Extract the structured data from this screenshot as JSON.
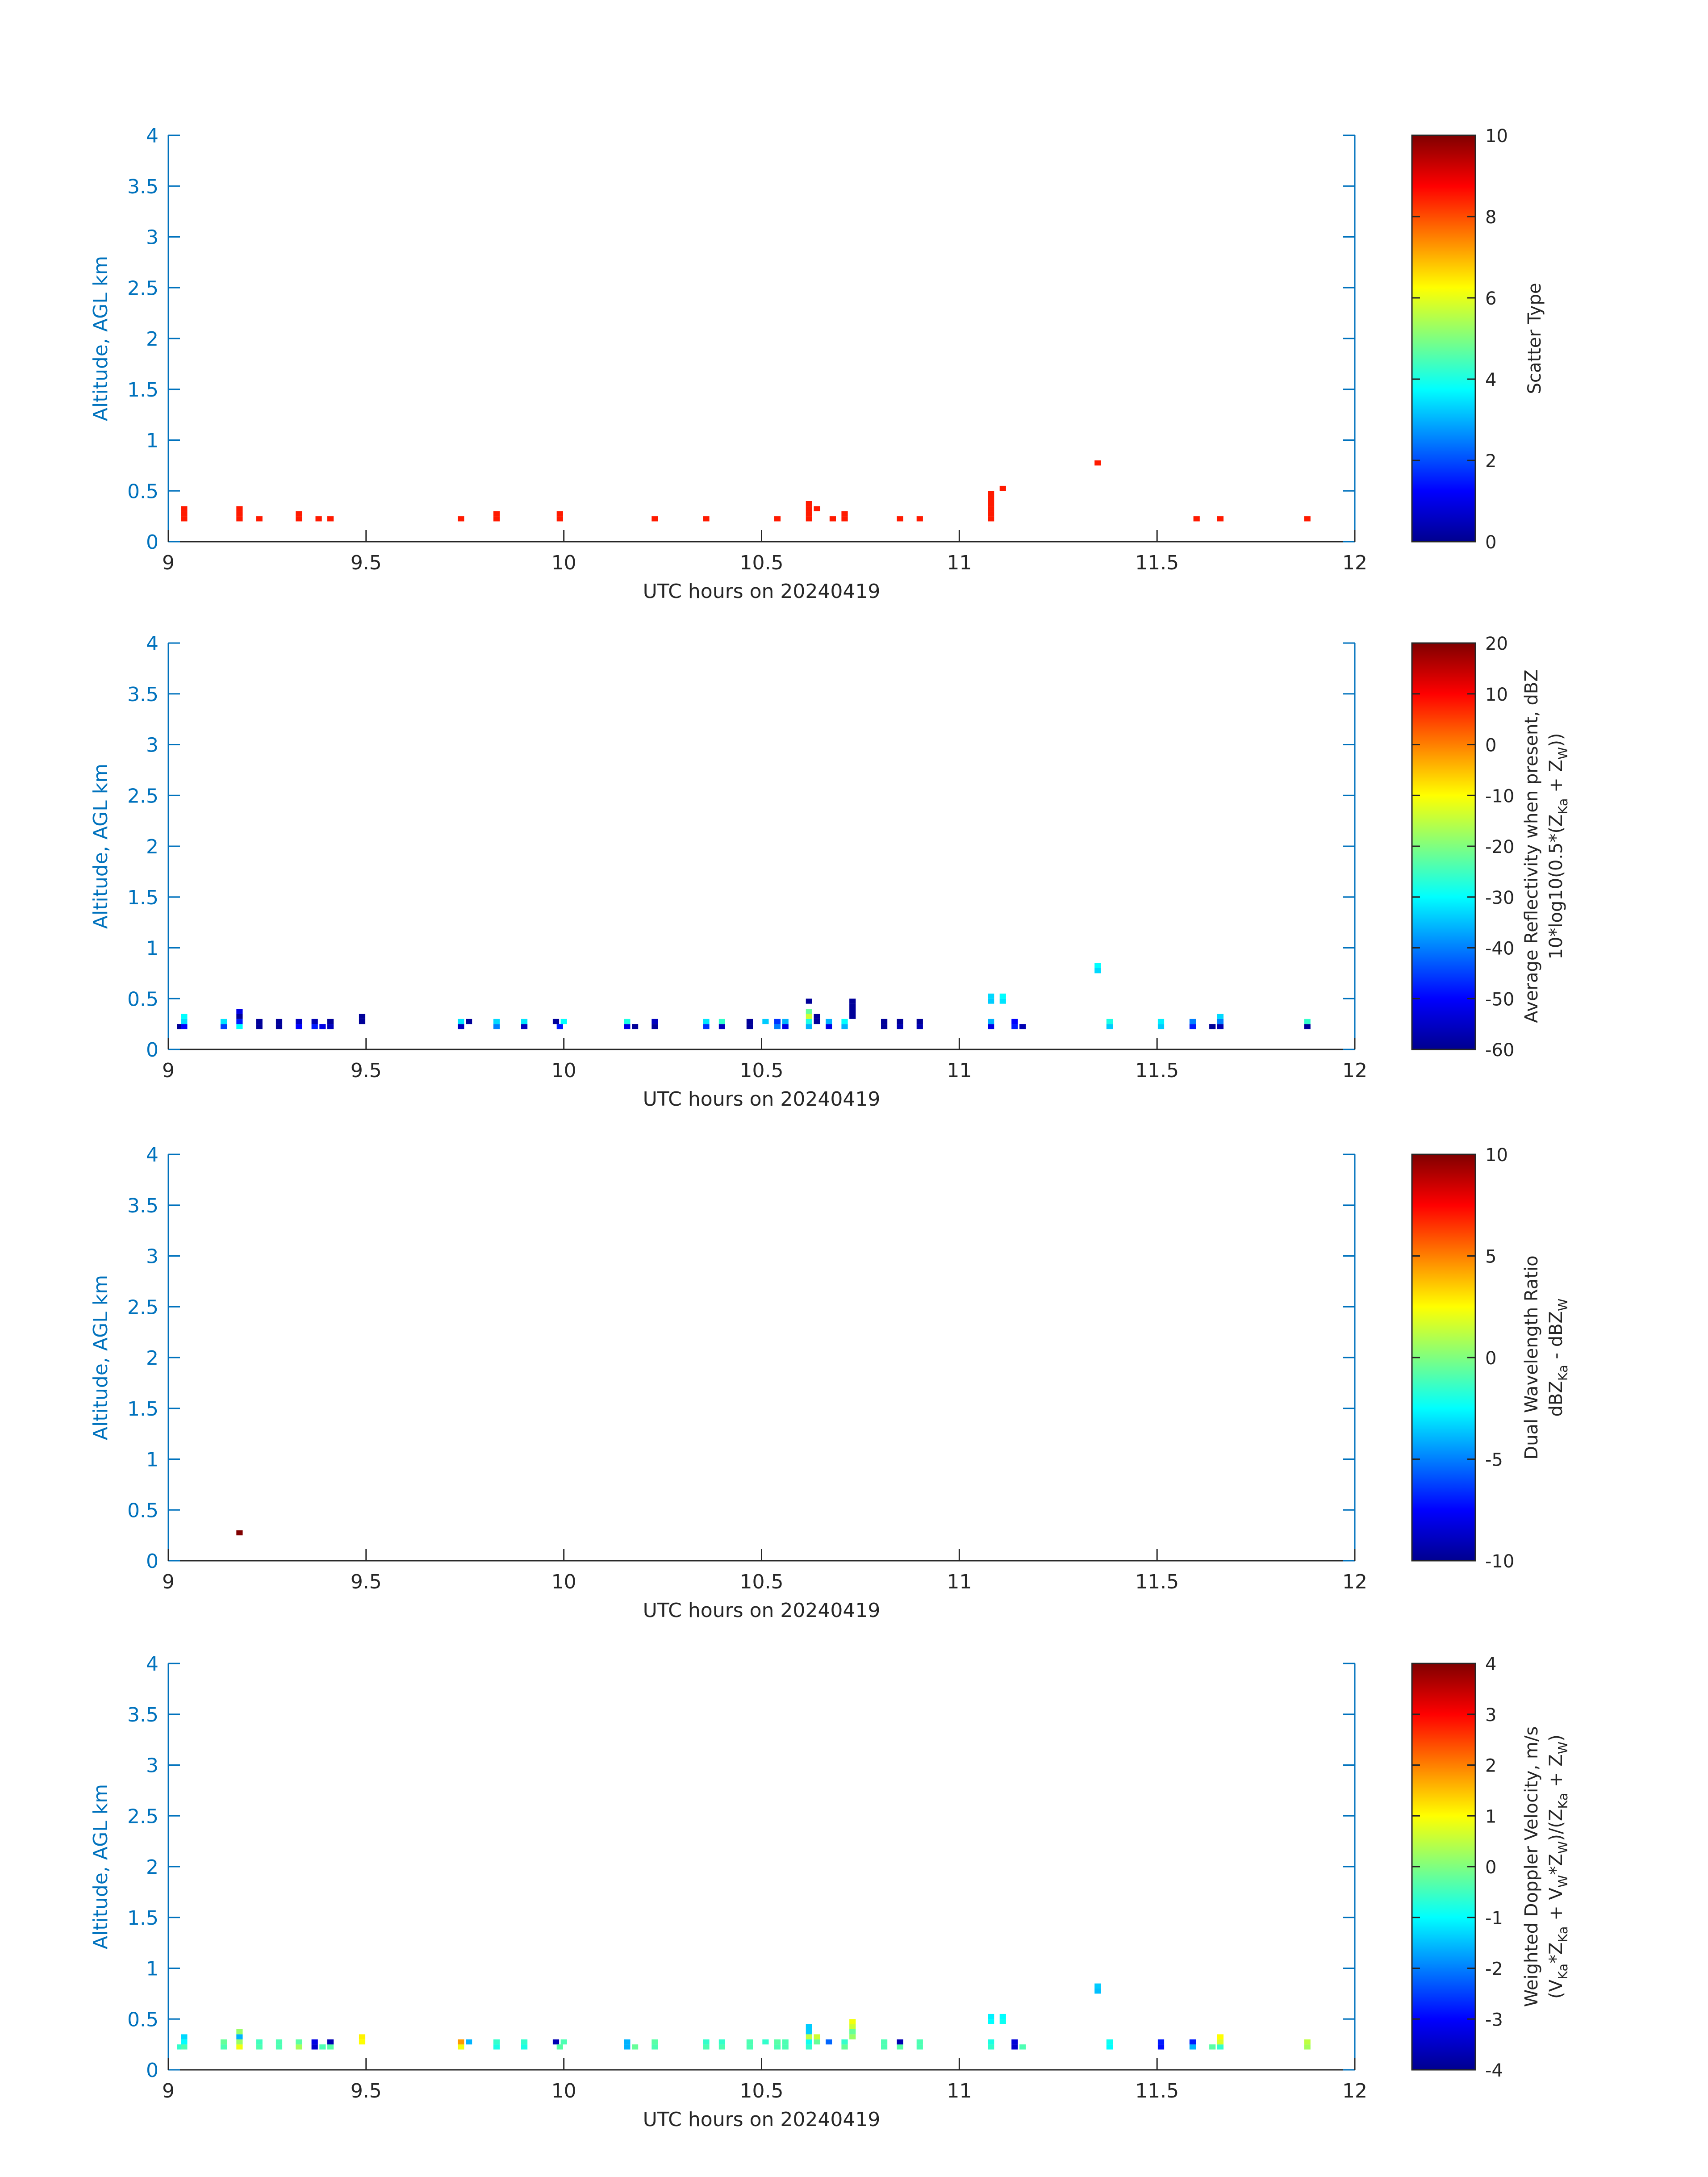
{
  "colors": {
    "axis": "#0072bd",
    "text": "#262626",
    "background": "#ffffff"
  },
  "chart_data": [
    {
      "type": "heatmap",
      "xlabel": "UTC hours on 20240419",
      "ylabel": "Altitude, AGL km",
      "xlim": [
        9,
        12
      ],
      "ylim": [
        0,
        4
      ],
      "xticks": [
        "9",
        "9.5",
        "10",
        "10.5",
        "11",
        "11.5",
        "12"
      ],
      "yticks": [
        "0",
        "0.5",
        "1",
        "1.5",
        "2",
        "2.5",
        "3",
        "3.5",
        "4"
      ],
      "colorbar": {
        "label": "Scatter Type",
        "label2": "",
        "range": [
          0,
          10
        ],
        "ticks": [
          "0",
          "2",
          "4",
          "6",
          "8",
          "10"
        ],
        "colormap": "jet"
      },
      "dx": 0.016,
      "dy": 0.05,
      "cells": [
        [
          9.04,
          0.2,
          8.5
        ],
        [
          9.04,
          0.25,
          8.5
        ],
        [
          9.04,
          0.3,
          8.5
        ],
        [
          9.18,
          0.2,
          8.5
        ],
        [
          9.18,
          0.25,
          8.5
        ],
        [
          9.18,
          0.3,
          8.5
        ],
        [
          9.23,
          0.2,
          8.5
        ],
        [
          9.33,
          0.2,
          8.5
        ],
        [
          9.33,
          0.25,
          8.5
        ],
        [
          9.38,
          0.2,
          8.5
        ],
        [
          9.41,
          0.2,
          8.5
        ],
        [
          9.74,
          0.2,
          8.5
        ],
        [
          9.83,
          0.2,
          8.5
        ],
        [
          9.83,
          0.25,
          8.5
        ],
        [
          9.99,
          0.2,
          8.5
        ],
        [
          9.99,
          0.25,
          8.5
        ],
        [
          10.23,
          0.2,
          8.5
        ],
        [
          10.36,
          0.2,
          8.5
        ],
        [
          10.54,
          0.2,
          8.5
        ],
        [
          10.62,
          0.2,
          8.5
        ],
        [
          10.62,
          0.25,
          8.5
        ],
        [
          10.62,
          0.3,
          8.5
        ],
        [
          10.62,
          0.35,
          8.5
        ],
        [
          10.64,
          0.3,
          8.5
        ],
        [
          10.68,
          0.2,
          8.5
        ],
        [
          10.71,
          0.2,
          8.5
        ],
        [
          10.71,
          0.25,
          8.5
        ],
        [
          10.85,
          0.2,
          8.5
        ],
        [
          10.9,
          0.2,
          8.5
        ],
        [
          11.08,
          0.2,
          8.5
        ],
        [
          11.08,
          0.25,
          8.5
        ],
        [
          11.08,
          0.3,
          8.5
        ],
        [
          11.08,
          0.35,
          8.5
        ],
        [
          11.08,
          0.4,
          8.5
        ],
        [
          11.08,
          0.45,
          8.5
        ],
        [
          11.11,
          0.5,
          8.5
        ],
        [
          11.35,
          0.75,
          8.5
        ],
        [
          11.6,
          0.2,
          8.5
        ],
        [
          11.66,
          0.2,
          8.5
        ],
        [
          11.88,
          0.2,
          8.5
        ]
      ]
    },
    {
      "type": "heatmap",
      "xlabel": "UTC hours on 20240419",
      "ylabel": "Altitude, AGL km",
      "xlim": [
        9,
        12
      ],
      "ylim": [
        0,
        4
      ],
      "xticks": [
        "9",
        "9.5",
        "10",
        "10.5",
        "11",
        "11.5",
        "12"
      ],
      "yticks": [
        "0",
        "0.5",
        "1",
        "1.5",
        "2",
        "2.5",
        "3",
        "3.5",
        "4"
      ],
      "colorbar": {
        "label": "Average Reflectivity when present, dBZ",
        "label2": "10*log10(0.5*(Z_Ka + Z_W))",
        "range": [
          -60,
          20
        ],
        "ticks": [
          "-60",
          "-50",
          "-40",
          "-30",
          "-20",
          "-10",
          "0",
          "10",
          "20"
        ],
        "colormap": "jet"
      },
      "dx": 0.016,
      "dy": 0.05,
      "cells": [
        [
          9.03,
          0.2,
          -58
        ],
        [
          9.04,
          0.2,
          -50
        ],
        [
          9.04,
          0.25,
          -33
        ],
        [
          9.04,
          0.3,
          -30
        ],
        [
          9.14,
          0.2,
          -45
        ],
        [
          9.14,
          0.25,
          -32
        ],
        [
          9.18,
          0.2,
          -30
        ],
        [
          9.18,
          0.25,
          -48
        ],
        [
          9.18,
          0.3,
          -58
        ],
        [
          9.18,
          0.35,
          -52
        ],
        [
          9.23,
          0.2,
          -58
        ],
        [
          9.23,
          0.25,
          -58
        ],
        [
          9.28,
          0.2,
          -58
        ],
        [
          9.28,
          0.25,
          -58
        ],
        [
          9.33,
          0.2,
          -50
        ],
        [
          9.33,
          0.25,
          -55
        ],
        [
          9.37,
          0.2,
          -48
        ],
        [
          9.37,
          0.25,
          -56
        ],
        [
          9.39,
          0.2,
          -52
        ],
        [
          9.41,
          0.2,
          -55
        ],
        [
          9.41,
          0.25,
          -58
        ],
        [
          9.49,
          0.25,
          -58
        ],
        [
          9.49,
          0.3,
          -58
        ],
        [
          9.74,
          0.2,
          -55
        ],
        [
          9.74,
          0.25,
          -32
        ],
        [
          9.76,
          0.25,
          -58
        ],
        [
          9.83,
          0.2,
          -40
        ],
        [
          9.83,
          0.25,
          -33
        ],
        [
          9.9,
          0.2,
          -55
        ],
        [
          9.9,
          0.25,
          -32
        ],
        [
          9.98,
          0.25,
          -58
        ],
        [
          9.99,
          0.2,
          -48
        ],
        [
          10.0,
          0.25,
          -30
        ],
        [
          10.16,
          0.2,
          -52
        ],
        [
          10.16,
          0.25,
          -28
        ],
        [
          10.18,
          0.2,
          -58
        ],
        [
          10.23,
          0.2,
          -58
        ],
        [
          10.23,
          0.25,
          -55
        ],
        [
          10.36,
          0.2,
          -46
        ],
        [
          10.36,
          0.25,
          -32
        ],
        [
          10.4,
          0.2,
          -55
        ],
        [
          10.4,
          0.25,
          -26
        ],
        [
          10.47,
          0.2,
          -58
        ],
        [
          10.47,
          0.25,
          -58
        ],
        [
          10.51,
          0.25,
          -34
        ],
        [
          10.54,
          0.2,
          -40
        ],
        [
          10.54,
          0.25,
          -46
        ],
        [
          10.56,
          0.2,
          -52
        ],
        [
          10.56,
          0.25,
          -36
        ],
        [
          10.62,
          0.2,
          -36
        ],
        [
          10.62,
          0.25,
          -28
        ],
        [
          10.62,
          0.3,
          -14
        ],
        [
          10.62,
          0.35,
          -22
        ],
        [
          10.62,
          0.45,
          -58
        ],
        [
          10.64,
          0.25,
          -58
        ],
        [
          10.64,
          0.3,
          -58
        ],
        [
          10.67,
          0.2,
          -52
        ],
        [
          10.67,
          0.25,
          -36
        ],
        [
          10.71,
          0.2,
          -36
        ],
        [
          10.71,
          0.25,
          -30
        ],
        [
          10.73,
          0.3,
          -58
        ],
        [
          10.73,
          0.35,
          -58
        ],
        [
          10.73,
          0.4,
          -58
        ],
        [
          10.73,
          0.45,
          -58
        ],
        [
          10.81,
          0.2,
          -58
        ],
        [
          10.81,
          0.25,
          -58
        ],
        [
          10.85,
          0.2,
          -56
        ],
        [
          10.85,
          0.25,
          -58
        ],
        [
          10.9,
          0.2,
          -56
        ],
        [
          10.9,
          0.25,
          -58
        ],
        [
          11.08,
          0.2,
          -52
        ],
        [
          11.08,
          0.25,
          -36
        ],
        [
          11.08,
          0.45,
          -34
        ],
        [
          11.08,
          0.5,
          -33
        ],
        [
          11.11,
          0.45,
          -32
        ],
        [
          11.11,
          0.5,
          -30
        ],
        [
          11.14,
          0.2,
          -48
        ],
        [
          11.14,
          0.25,
          -50
        ],
        [
          11.16,
          0.2,
          -56
        ],
        [
          11.35,
          0.75,
          -33
        ],
        [
          11.35,
          0.8,
          -30
        ],
        [
          11.38,
          0.2,
          -34
        ],
        [
          11.38,
          0.25,
          -28
        ],
        [
          11.51,
          0.2,
          -34
        ],
        [
          11.51,
          0.25,
          -31
        ],
        [
          11.59,
          0.2,
          -48
        ],
        [
          11.59,
          0.25,
          -40
        ],
        [
          11.64,
          0.2,
          -58
        ],
        [
          11.66,
          0.2,
          -56
        ],
        [
          11.66,
          0.25,
          -40
        ],
        [
          11.66,
          0.3,
          -33
        ],
        [
          11.88,
          0.2,
          -58
        ],
        [
          11.88,
          0.25,
          -26
        ]
      ]
    },
    {
      "type": "heatmap",
      "xlabel": "UTC hours on 20240419",
      "ylabel": "Altitude, AGL km",
      "xlim": [
        9,
        12
      ],
      "ylim": [
        0,
        4
      ],
      "xticks": [
        "9",
        "9.5",
        "10",
        "10.5",
        "11",
        "11.5",
        "12"
      ],
      "yticks": [
        "0",
        "0.5",
        "1",
        "1.5",
        "2",
        "2.5",
        "3",
        "3.5",
        "4"
      ],
      "colorbar": {
        "label": "Dual Wavelength Ratio",
        "label2": "dBZ_Ka - dBZ_W",
        "range": [
          -10,
          10
        ],
        "ticks": [
          "-10",
          "-5",
          "0",
          "5",
          "10"
        ],
        "colormap": "jet"
      },
      "dx": 0.016,
      "dy": 0.05,
      "cells": [
        [
          9.18,
          0.25,
          10
        ]
      ]
    },
    {
      "type": "heatmap",
      "xlabel": "UTC hours on 20240419",
      "ylabel": "Altitude, AGL km",
      "xlim": [
        9,
        12
      ],
      "ylim": [
        0,
        4
      ],
      "xticks": [
        "9",
        "9.5",
        "10",
        "10.5",
        "11",
        "11.5",
        "12"
      ],
      "yticks": [
        "0",
        "0.5",
        "1",
        "1.5",
        "2",
        "2.5",
        "3",
        "3.5",
        "4"
      ],
      "colorbar": {
        "label": "Weighted Doppler Velocity, m/s",
        "label2": "(V_Ka*Z_Ka + V_W*Z_W)/(Z_Ka + Z_W)",
        "range": [
          -4,
          4
        ],
        "ticks": [
          "-4",
          "-3",
          "-2",
          "-1",
          "0",
          "1",
          "2",
          "3",
          "4"
        ],
        "colormap": "jet"
      },
      "dx": 0.016,
      "dy": 0.05,
      "cells": [
        [
          9.03,
          0.2,
          -0.6
        ],
        [
          9.04,
          0.2,
          -0.4
        ],
        [
          9.04,
          0.25,
          -1.0
        ],
        [
          9.04,
          0.3,
          -1.3
        ],
        [
          9.14,
          0.2,
          -0.4
        ],
        [
          9.14,
          0.25,
          -0.2
        ],
        [
          9.18,
          0.2,
          0.9
        ],
        [
          9.18,
          0.25,
          0.2
        ],
        [
          9.18,
          0.3,
          -1.6
        ],
        [
          9.18,
          0.35,
          0.2
        ],
        [
          9.23,
          0.2,
          -0.4
        ],
        [
          9.23,
          0.25,
          -0.5
        ],
        [
          9.28,
          0.2,
          -0.4
        ],
        [
          9.28,
          0.25,
          -0.4
        ],
        [
          9.33,
          0.2,
          0.3
        ],
        [
          9.33,
          0.25,
          -0.3
        ],
        [
          9.37,
          0.2,
          -3.4
        ],
        [
          9.37,
          0.25,
          -3.2
        ],
        [
          9.39,
          0.2,
          -0.4
        ],
        [
          9.41,
          0.2,
          -0.3
        ],
        [
          9.41,
          0.25,
          -3.6
        ],
        [
          9.49,
          0.25,
          1.0
        ],
        [
          9.49,
          0.3,
          1.1
        ],
        [
          9.74,
          0.2,
          0.9
        ],
        [
          9.74,
          0.25,
          1.8
        ],
        [
          9.76,
          0.25,
          -1.6
        ],
        [
          9.83,
          0.2,
          -0.8
        ],
        [
          9.83,
          0.25,
          -0.6
        ],
        [
          9.9,
          0.2,
          -0.8
        ],
        [
          9.9,
          0.25,
          -0.6
        ],
        [
          9.98,
          0.25,
          -3.6
        ],
        [
          9.99,
          0.2,
          -0.3
        ],
        [
          10.0,
          0.25,
          -0.4
        ],
        [
          10.16,
          0.2,
          -1.6
        ],
        [
          10.16,
          0.25,
          -1.6
        ],
        [
          10.18,
          0.2,
          -0.2
        ],
        [
          10.23,
          0.2,
          -0.4
        ],
        [
          10.23,
          0.25,
          -0.3
        ],
        [
          10.36,
          0.2,
          -0.4
        ],
        [
          10.36,
          0.25,
          -0.6
        ],
        [
          10.4,
          0.2,
          -0.4
        ],
        [
          10.4,
          0.25,
          -0.6
        ],
        [
          10.47,
          0.2,
          -0.4
        ],
        [
          10.47,
          0.25,
          -0.4
        ],
        [
          10.51,
          0.25,
          -0.6
        ],
        [
          10.54,
          0.2,
          -0.4
        ],
        [
          10.54,
          0.25,
          -0.3
        ],
        [
          10.56,
          0.2,
          -0.4
        ],
        [
          10.56,
          0.25,
          -0.4
        ],
        [
          10.62,
          0.2,
          -0.6
        ],
        [
          10.62,
          0.25,
          -0.9
        ],
        [
          10.62,
          0.3,
          0.5
        ],
        [
          10.62,
          0.35,
          -1.4
        ],
        [
          10.62,
          0.4,
          -1.4
        ],
        [
          10.64,
          0.25,
          -0.2
        ],
        [
          10.64,
          0.3,
          0.6
        ],
        [
          10.67,
          0.25,
          -2.2
        ],
        [
          10.71,
          0.2,
          -0.2
        ],
        [
          10.71,
          0.25,
          -0.6
        ],
        [
          10.73,
          0.3,
          0.2
        ],
        [
          10.73,
          0.35,
          -0.2
        ],
        [
          10.73,
          0.4,
          0.6
        ],
        [
          10.73,
          0.45,
          0.9
        ],
        [
          10.81,
          0.2,
          -0.4
        ],
        [
          10.81,
          0.25,
          -0.4
        ],
        [
          10.85,
          0.2,
          -0.3
        ],
        [
          10.85,
          0.25,
          -3.6
        ],
        [
          10.9,
          0.2,
          -0.4
        ],
        [
          10.9,
          0.25,
          -0.4
        ],
        [
          11.08,
          0.2,
          -0.6
        ],
        [
          11.08,
          0.25,
          -0.8
        ],
        [
          11.08,
          0.45,
          -1.0
        ],
        [
          11.08,
          0.5,
          -1.1
        ],
        [
          11.11,
          0.45,
          -0.9
        ],
        [
          11.11,
          0.5,
          -1.0
        ],
        [
          11.14,
          0.2,
          -3.4
        ],
        [
          11.14,
          0.25,
          -3.3
        ],
        [
          11.16,
          0.2,
          -0.4
        ],
        [
          11.35,
          0.75,
          -1.5
        ],
        [
          11.35,
          0.8,
          -1.4
        ],
        [
          11.38,
          0.2,
          -1.0
        ],
        [
          11.38,
          0.25,
          -0.9
        ],
        [
          11.51,
          0.2,
          -2.9
        ],
        [
          11.51,
          0.25,
          -2.8
        ],
        [
          11.59,
          0.2,
          -1.6
        ],
        [
          11.59,
          0.25,
          -2.8
        ],
        [
          11.64,
          0.2,
          -0.3
        ],
        [
          11.66,
          0.2,
          -0.6
        ],
        [
          11.66,
          0.25,
          0.7
        ],
        [
          11.66,
          0.3,
          1.0
        ],
        [
          11.88,
          0.2,
          0.3
        ],
        [
          11.88,
          0.25,
          0.5
        ]
      ]
    }
  ]
}
